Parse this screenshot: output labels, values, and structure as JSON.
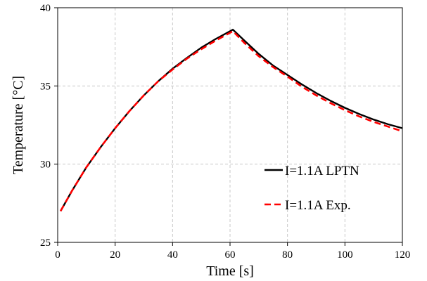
{
  "chart_data": {
    "type": "line",
    "xlabel": "Time [s]",
    "ylabel": "Temperature [°C]",
    "xlim": [
      0,
      120
    ],
    "ylim": [
      25,
      40
    ],
    "xticks": [
      0,
      20,
      40,
      60,
      80,
      100,
      120
    ],
    "yticks": [
      25,
      30,
      35,
      40
    ],
    "grid": true,
    "legend_position": "right",
    "series": [
      {
        "name": "I=1.1A LPTN",
        "color": "#000000",
        "style": "solid",
        "x": [
          1,
          5,
          10,
          15,
          20,
          25,
          30,
          35,
          40,
          45,
          50,
          55,
          60,
          61,
          65,
          70,
          75,
          80,
          85,
          90,
          95,
          100,
          105,
          110,
          115,
          120
        ],
        "y": [
          27.0,
          28.3,
          29.8,
          31.1,
          32.3,
          33.4,
          34.4,
          35.3,
          36.1,
          36.8,
          37.45,
          38.0,
          38.5,
          38.6,
          37.9,
          37.05,
          36.3,
          35.7,
          35.1,
          34.55,
          34.05,
          33.6,
          33.2,
          32.85,
          32.55,
          32.3
        ]
      },
      {
        "name": "I=1.1A Exp.",
        "color": "#ff0000",
        "style": "dashed",
        "x": [
          1,
          5,
          10,
          15,
          20,
          25,
          30,
          35,
          40,
          45,
          50,
          55,
          60,
          61,
          65,
          70,
          75,
          80,
          85,
          90,
          95,
          100,
          105,
          110,
          115,
          120
        ],
        "y": [
          27.0,
          28.3,
          29.8,
          31.1,
          32.3,
          33.4,
          34.4,
          35.3,
          36.05,
          36.75,
          37.35,
          37.9,
          38.4,
          38.5,
          37.75,
          36.9,
          36.2,
          35.6,
          34.95,
          34.4,
          33.9,
          33.45,
          33.05,
          32.7,
          32.4,
          32.1
        ]
      }
    ]
  }
}
